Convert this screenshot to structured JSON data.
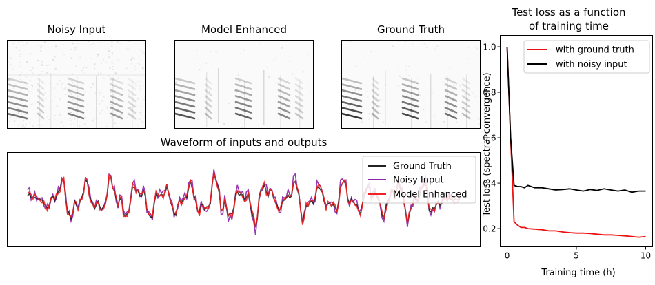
{
  "spectrograms": [
    {
      "title": "Noisy Input",
      "noise": 0.55,
      "clarity": 0.7
    },
    {
      "title": "Model Enhanced",
      "noise": 0.08,
      "clarity": 0.85
    },
    {
      "title": "Ground Truth",
      "noise": 0.12,
      "clarity": 1.0
    }
  ],
  "waveform": {
    "title": "Waveform of inputs and outputs",
    "legend_position": "upper-right",
    "legend": [
      {
        "label": "Ground Truth",
        "color": "#222222"
      },
      {
        "label": "Noisy Input",
        "color": "#8e24aa"
      },
      {
        "label": "Model Enhanced",
        "color": "#ee2222"
      }
    ]
  },
  "chart_data": {
    "type": "line",
    "title": "Test loss as a function\nof training time",
    "title_lines": [
      "Test loss as a function",
      "of training time"
    ],
    "xlabel": "Training time (h)",
    "ylabel": "Test loss (spectral convergence)",
    "xlim": [
      -0.5,
      10.5
    ],
    "ylim": [
      0.12,
      1.05
    ],
    "xticks": [
      0,
      5,
      10
    ],
    "yticks": [
      0.2,
      0.4,
      0.6,
      0.8,
      1.0
    ],
    "ytick_labels": [
      "0.2",
      "0.4",
      "0.6",
      "0.8",
      "1.0"
    ],
    "legend_position": "upper-right",
    "series": [
      {
        "name": "with ground truth",
        "color": "#ee1111",
        "x": [
          0,
          0.25,
          0.5,
          0.75,
          1.0,
          1.25,
          1.5,
          2,
          2.5,
          3,
          3.5,
          4,
          4.5,
          5,
          5.5,
          6,
          6.5,
          7,
          7.5,
          8,
          8.5,
          9,
          9.5,
          10
        ],
        "y": [
          1.0,
          0.6,
          0.23,
          0.215,
          0.205,
          0.205,
          0.2,
          0.198,
          0.195,
          0.19,
          0.19,
          0.185,
          0.182,
          0.18,
          0.18,
          0.178,
          0.175,
          0.172,
          0.172,
          0.17,
          0.168,
          0.165,
          0.162,
          0.165
        ]
      },
      {
        "name": "with noisy input",
        "color": "#000000",
        "x": [
          0,
          0.25,
          0.5,
          0.75,
          1.0,
          1.25,
          1.5,
          2,
          2.5,
          3,
          3.5,
          4,
          4.5,
          5,
          5.5,
          6,
          6.5,
          7,
          7.5,
          8,
          8.5,
          9,
          9.5,
          10
        ],
        "y": [
          1.0,
          0.6,
          0.39,
          0.385,
          0.385,
          0.38,
          0.39,
          0.38,
          0.38,
          0.375,
          0.37,
          0.372,
          0.375,
          0.37,
          0.365,
          0.372,
          0.368,
          0.375,
          0.37,
          0.365,
          0.37,
          0.36,
          0.365,
          0.365
        ]
      }
    ]
  }
}
